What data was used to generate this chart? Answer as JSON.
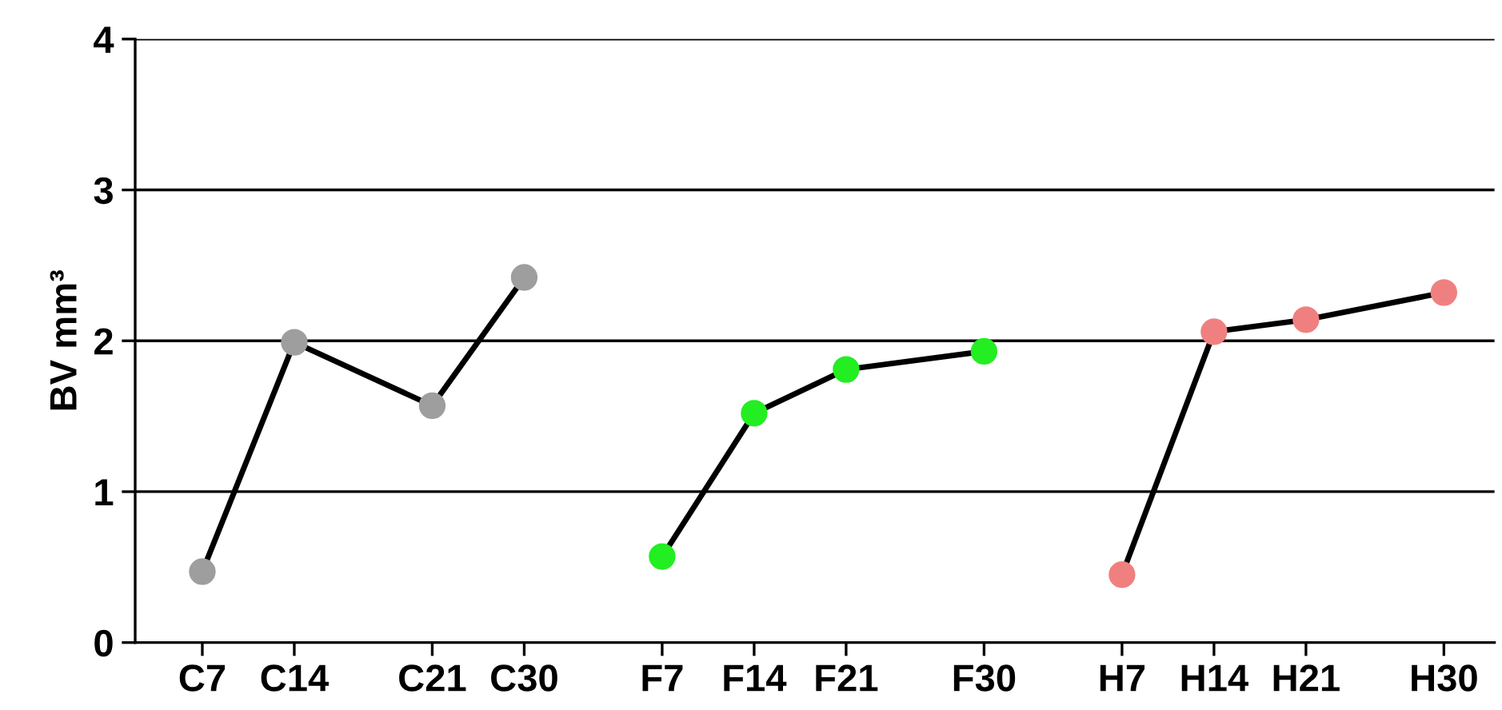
{
  "chart_data": {
    "type": "line",
    "ylabel": "BV mm³",
    "ylim": [
      0,
      4
    ],
    "yticks": [
      0,
      1,
      2,
      3,
      4
    ],
    "categories": [
      "C7",
      null,
      "C14",
      null,
      null,
      "C21",
      null,
      "C30",
      null,
      null,
      "F7",
      null,
      "F14",
      null,
      "F21",
      null,
      null,
      "F30",
      null,
      null,
      "H7",
      null,
      "H14",
      null,
      "H21",
      null,
      null,
      "H30"
    ],
    "series": [
      {
        "color": "#9e9e9e",
        "values": [
          0.47,
          null,
          1.99,
          null,
          null,
          1.57,
          null,
          2.42,
          null,
          null,
          null,
          null,
          null,
          null,
          null,
          null,
          null,
          null,
          null,
          null,
          null,
          null,
          null,
          null,
          null,
          null,
          null,
          null
        ]
      },
      {
        "color": "#22ee22",
        "values": [
          null,
          null,
          null,
          null,
          null,
          null,
          null,
          null,
          null,
          null,
          0.57,
          null,
          1.52,
          null,
          1.81,
          null,
          null,
          1.93,
          null,
          null,
          null,
          null,
          null,
          null,
          null,
          null,
          null,
          null
        ]
      },
      {
        "color": "#f08080",
        "values": [
          null,
          null,
          null,
          null,
          null,
          null,
          null,
          null,
          null,
          null,
          null,
          null,
          null,
          null,
          null,
          null,
          null,
          null,
          null,
          null,
          0.45,
          null,
          2.06,
          null,
          2.14,
          null,
          null,
          2.32
        ]
      }
    ],
    "grid": "y",
    "marker": "circle",
    "line_style": "solid",
    "legend": false
  }
}
